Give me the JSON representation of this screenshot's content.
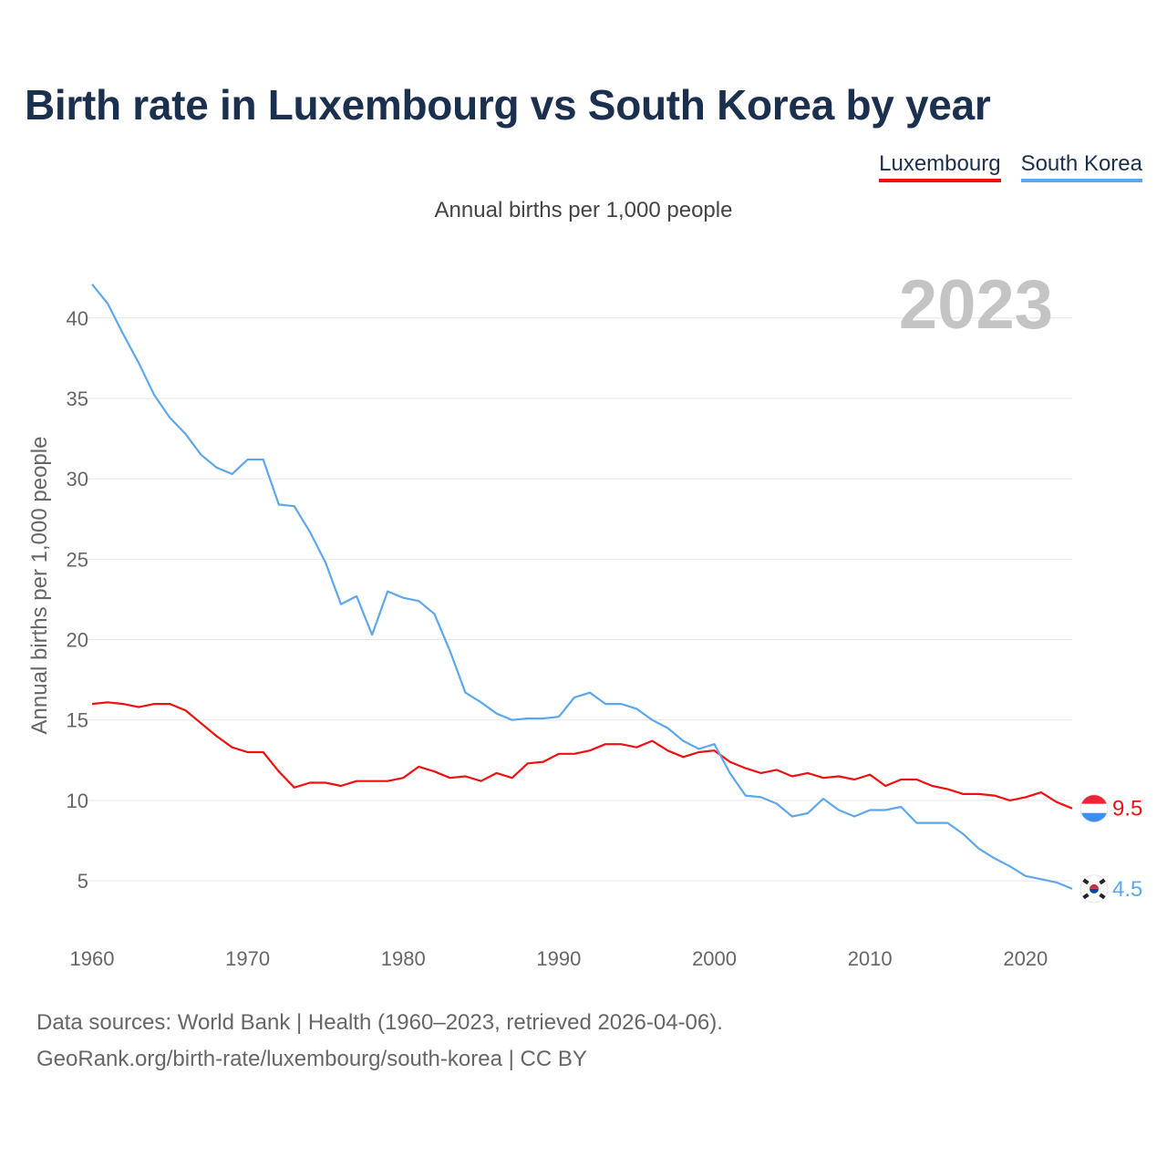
{
  "title": "Birth rate in Luxembourg vs South Korea by year",
  "subtitle": "Annual births per 1,000 people",
  "legend": [
    {
      "name": "Luxembourg",
      "color": "#ee1111"
    },
    {
      "name": "South Korea",
      "color": "#5ea7ea"
    }
  ],
  "footer": {
    "line1": "Data sources: World Bank | Health (1960–2023, retrieved 2026-04-06).",
    "line2": "GeoRank.org/birth-rate/luxembourg/south-korea | CC BY"
  },
  "chart_data": {
    "type": "line",
    "year_label": "2023",
    "ylabel": "Annual births per 1,000 people",
    "xlabel": "",
    "xlim": [
      1960,
      2023
    ],
    "ylim": [
      2,
      42.2
    ],
    "x_ticks": [
      1960,
      1970,
      1980,
      1990,
      2000,
      2010,
      2020
    ],
    "y_ticks": [
      5,
      10,
      15,
      20,
      25,
      30,
      35,
      40
    ],
    "grid": true,
    "x": [
      1960,
      1961,
      1962,
      1963,
      1964,
      1965,
      1966,
      1967,
      1968,
      1969,
      1970,
      1971,
      1972,
      1973,
      1974,
      1975,
      1976,
      1977,
      1978,
      1979,
      1980,
      1981,
      1982,
      1983,
      1984,
      1985,
      1986,
      1987,
      1988,
      1989,
      1990,
      1991,
      1992,
      1993,
      1994,
      1995,
      1996,
      1997,
      1998,
      1999,
      2000,
      2001,
      2002,
      2003,
      2004,
      2005,
      2006,
      2007,
      2008,
      2009,
      2010,
      2011,
      2012,
      2013,
      2014,
      2015,
      2016,
      2017,
      2018,
      2019,
      2020,
      2021,
      2022,
      2023
    ],
    "series": [
      {
        "name": "Luxembourg",
        "color": "#ee1111",
        "end_label": "9.5",
        "values": [
          16.0,
          16.1,
          16.0,
          15.8,
          16.0,
          16.0,
          15.6,
          14.8,
          14.0,
          13.3,
          13.0,
          13.0,
          11.8,
          10.8,
          11.1,
          11.1,
          10.9,
          11.2,
          11.2,
          11.2,
          11.4,
          12.1,
          11.8,
          11.4,
          11.5,
          11.2,
          11.7,
          11.4,
          12.3,
          12.4,
          12.9,
          12.9,
          13.1,
          13.5,
          13.5,
          13.3,
          13.7,
          13.1,
          12.7,
          13.0,
          13.1,
          12.4,
          12.0,
          11.7,
          11.9,
          11.5,
          11.7,
          11.4,
          11.5,
          11.3,
          11.6,
          10.9,
          11.3,
          11.3,
          10.9,
          10.7,
          10.4,
          10.4,
          10.3,
          10.0,
          10.2,
          10.5,
          9.9,
          9.5
        ]
      },
      {
        "name": "South Korea",
        "color": "#5ea7ea",
        "end_label": "4.5",
        "values": [
          42.1,
          40.9,
          39.0,
          37.2,
          35.2,
          33.8,
          32.8,
          31.5,
          30.7,
          30.3,
          31.2,
          31.2,
          28.4,
          28.3,
          26.7,
          24.8,
          22.2,
          22.7,
          20.3,
          23.0,
          22.6,
          22.4,
          21.6,
          19.3,
          16.7,
          16.1,
          15.4,
          15.0,
          15.1,
          15.1,
          15.2,
          16.4,
          16.7,
          16.0,
          16.0,
          15.7,
          15.0,
          14.5,
          13.7,
          13.2,
          13.5,
          11.7,
          10.3,
          10.2,
          9.8,
          9.0,
          9.2,
          10.1,
          9.4,
          9.0,
          9.4,
          9.4,
          9.6,
          8.6,
          8.6,
          8.6,
          7.9,
          7.0,
          6.4,
          5.9,
          5.3,
          5.1,
          4.9,
          4.5
        ]
      }
    ]
  }
}
